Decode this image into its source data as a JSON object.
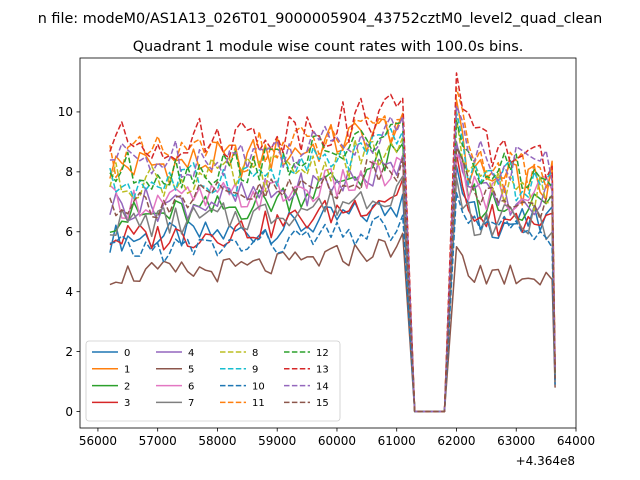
{
  "chart_data": {
    "type": "line",
    "suptitle": "n file: modeM0/AS1A13_026T01_9000005904_43752cztM0_level2_quad_clean",
    "title": "Quadrant 1 module wise count rates with 100.0s bins.",
    "xlabel": "",
    "ylabel": "",
    "x_offset_label": "+4.364e8",
    "xlim": [
      55700,
      64000
    ],
    "ylim": [
      -0.55,
      11.8
    ],
    "xticks": [
      56000,
      57000,
      58000,
      59000,
      60000,
      61000,
      62000,
      63000,
      64000
    ],
    "yticks": [
      0,
      2,
      4,
      6,
      8,
      10
    ],
    "grid": false,
    "legend": {
      "position": "lower-left",
      "columns": 4
    },
    "x": {
      "segment1": {
        "start": 56200,
        "end": 61100,
        "step": 100
      },
      "gap": [
        61100,
        61300,
        61400,
        61500,
        61600,
        61700,
        61800,
        62000
      ],
      "segment2": {
        "start": 62000,
        "end": 63600,
        "step": 100
      },
      "final": 63650
    },
    "series": [
      {
        "name": "0",
        "color": "#1f77b4",
        "dash": "solid",
        "level1": 5.8,
        "end1": 6.9,
        "level2": 6.3,
        "peak": 8.2,
        "last": 1.0
      },
      {
        "name": "1",
        "color": "#ff7f0e",
        "dash": "solid",
        "level1": 8.2,
        "end1": 9.6,
        "level2": 7.6,
        "peak": 10.4,
        "last": 1.4
      },
      {
        "name": "2",
        "color": "#2ca02c",
        "dash": "solid",
        "level1": 6.5,
        "end1": 8.6,
        "level2": 6.9,
        "peak": 8.9,
        "last": 1.2
      },
      {
        "name": "3",
        "color": "#d62728",
        "dash": "solid",
        "level1": 5.8,
        "end1": 7.4,
        "level2": 6.4,
        "peak": 8.6,
        "last": 1.1
      },
      {
        "name": "4",
        "color": "#9467bd",
        "dash": "solid",
        "level1": 6.9,
        "end1": 8.2,
        "level2": 7.0,
        "peak": 9.0,
        "last": 1.2
      },
      {
        "name": "5",
        "color": "#8c564b",
        "dash": "solid",
        "level1": 4.6,
        "end1": 5.6,
        "level2": 4.6,
        "peak": 5.5,
        "last": 0.8
      },
      {
        "name": "6",
        "color": "#e377c2",
        "dash": "solid",
        "level1": 7.0,
        "end1": 8.0,
        "level2": 7.3,
        "peak": 8.6,
        "last": 1.3
      },
      {
        "name": "7",
        "color": "#7f7f7f",
        "dash": "solid",
        "level1": 6.3,
        "end1": 7.5,
        "level2": 6.3,
        "peak": 7.8,
        "last": 1.0
      },
      {
        "name": "8",
        "color": "#bcbd22",
        "dash": "dashed",
        "level1": 7.7,
        "end1": 8.8,
        "level2": 7.4,
        "peak": 9.8,
        "last": 1.2
      },
      {
        "name": "9",
        "color": "#17becf",
        "dash": "dashed",
        "level1": 7.6,
        "end1": 9.0,
        "level2": 7.7,
        "peak": 10.0,
        "last": 1.3
      },
      {
        "name": "10",
        "color": "#1f77b4",
        "dash": "dashed",
        "level1": 5.4,
        "end1": 6.2,
        "level2": 6.0,
        "peak": 7.3,
        "last": 0.9
      },
      {
        "name": "11",
        "color": "#ff7f0e",
        "dash": "dashed",
        "level1": 8.5,
        "end1": 9.4,
        "level2": 8.0,
        "peak": 10.8,
        "last": 1.4
      },
      {
        "name": "12",
        "color": "#2ca02c",
        "dash": "dashed",
        "level1": 8.0,
        "end1": 9.3,
        "level2": 7.9,
        "peak": 9.7,
        "last": 1.3
      },
      {
        "name": "13",
        "color": "#d62728",
        "dash": "dashed",
        "level1": 9.0,
        "end1": 10.1,
        "level2": 8.6,
        "peak": 11.3,
        "last": 1.5
      },
      {
        "name": "14",
        "color": "#9467bd",
        "dash": "dashed",
        "level1": 8.4,
        "end1": 9.5,
        "level2": 8.2,
        "peak": 10.2,
        "last": 1.4
      },
      {
        "name": "15",
        "color": "#8c564b",
        "dash": "dashed",
        "level1": 7.0,
        "end1": 8.1,
        "level2": 7.0,
        "peak": 8.8,
        "last": 1.1
      }
    ]
  }
}
